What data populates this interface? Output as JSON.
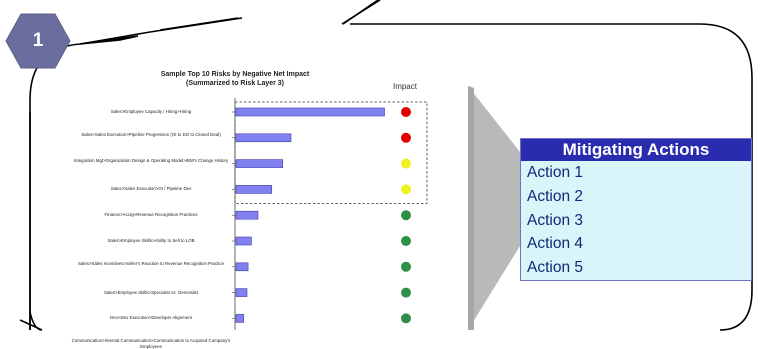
{
  "badge": {
    "number": "1"
  },
  "chart": {
    "title_line1": "Sample Top 10 Risks by Negative Net Impact",
    "title_line2": "(Summarized to Risk Layer 3)",
    "impact_header": "Impact"
  },
  "chart_data": {
    "type": "bar",
    "orientation": "horizontal",
    "categories": [
      "Sales>Employee Capacity / Hiring>Hiring",
      "Sales>Sales Execution>Pipeline Progression (OI to DO to Closed Deal)",
      "Integration Mgt>Organization Design & Operating Model>IBM's Change History",
      "Sales>Sales Execution>OI / Pipeline Dev",
      "Finance>Acctg>Revenue Recognition Practices",
      "Sales>Employee Skills>Ability to Sell to LOB",
      "Sales>Sales Incentives>Seller's Reaction to Revenue Recognition Practice",
      "Sales>Employee Skills>Specialist vs. Generalist",
      "Dev>Dev Execution>Developer Alignment",
      "Communication>Internal Communication>Communication to Acquired Company's Employees"
    ],
    "values": [
      2.7,
      1.0,
      0.85,
      0.65,
      0.4,
      0.28,
      0.22,
      0.2,
      0.14,
      0.1
    ],
    "impact": [
      "red",
      "red",
      "yellow",
      "yellow",
      "green",
      "green",
      "green",
      "green",
      "green",
      "green"
    ],
    "highlight_box_rows": 4,
    "xlim": [
      0,
      3
    ]
  },
  "colors": {
    "bar": "#8080f0",
    "bar_stroke": "#4040a8",
    "red": "#e00000",
    "yellow": "#f0f020",
    "green": "#2e8f48",
    "badge": "#6a6d9e",
    "header_bg": "#2a2cb0",
    "item_bg": "#d9f5f9",
    "item_text": "#0e2a78"
  },
  "mitigating": {
    "header": "Mitigating Actions",
    "actions": [
      "Action 1",
      "Action 2",
      "Action 3",
      "Action 4",
      "Action 5"
    ]
  }
}
